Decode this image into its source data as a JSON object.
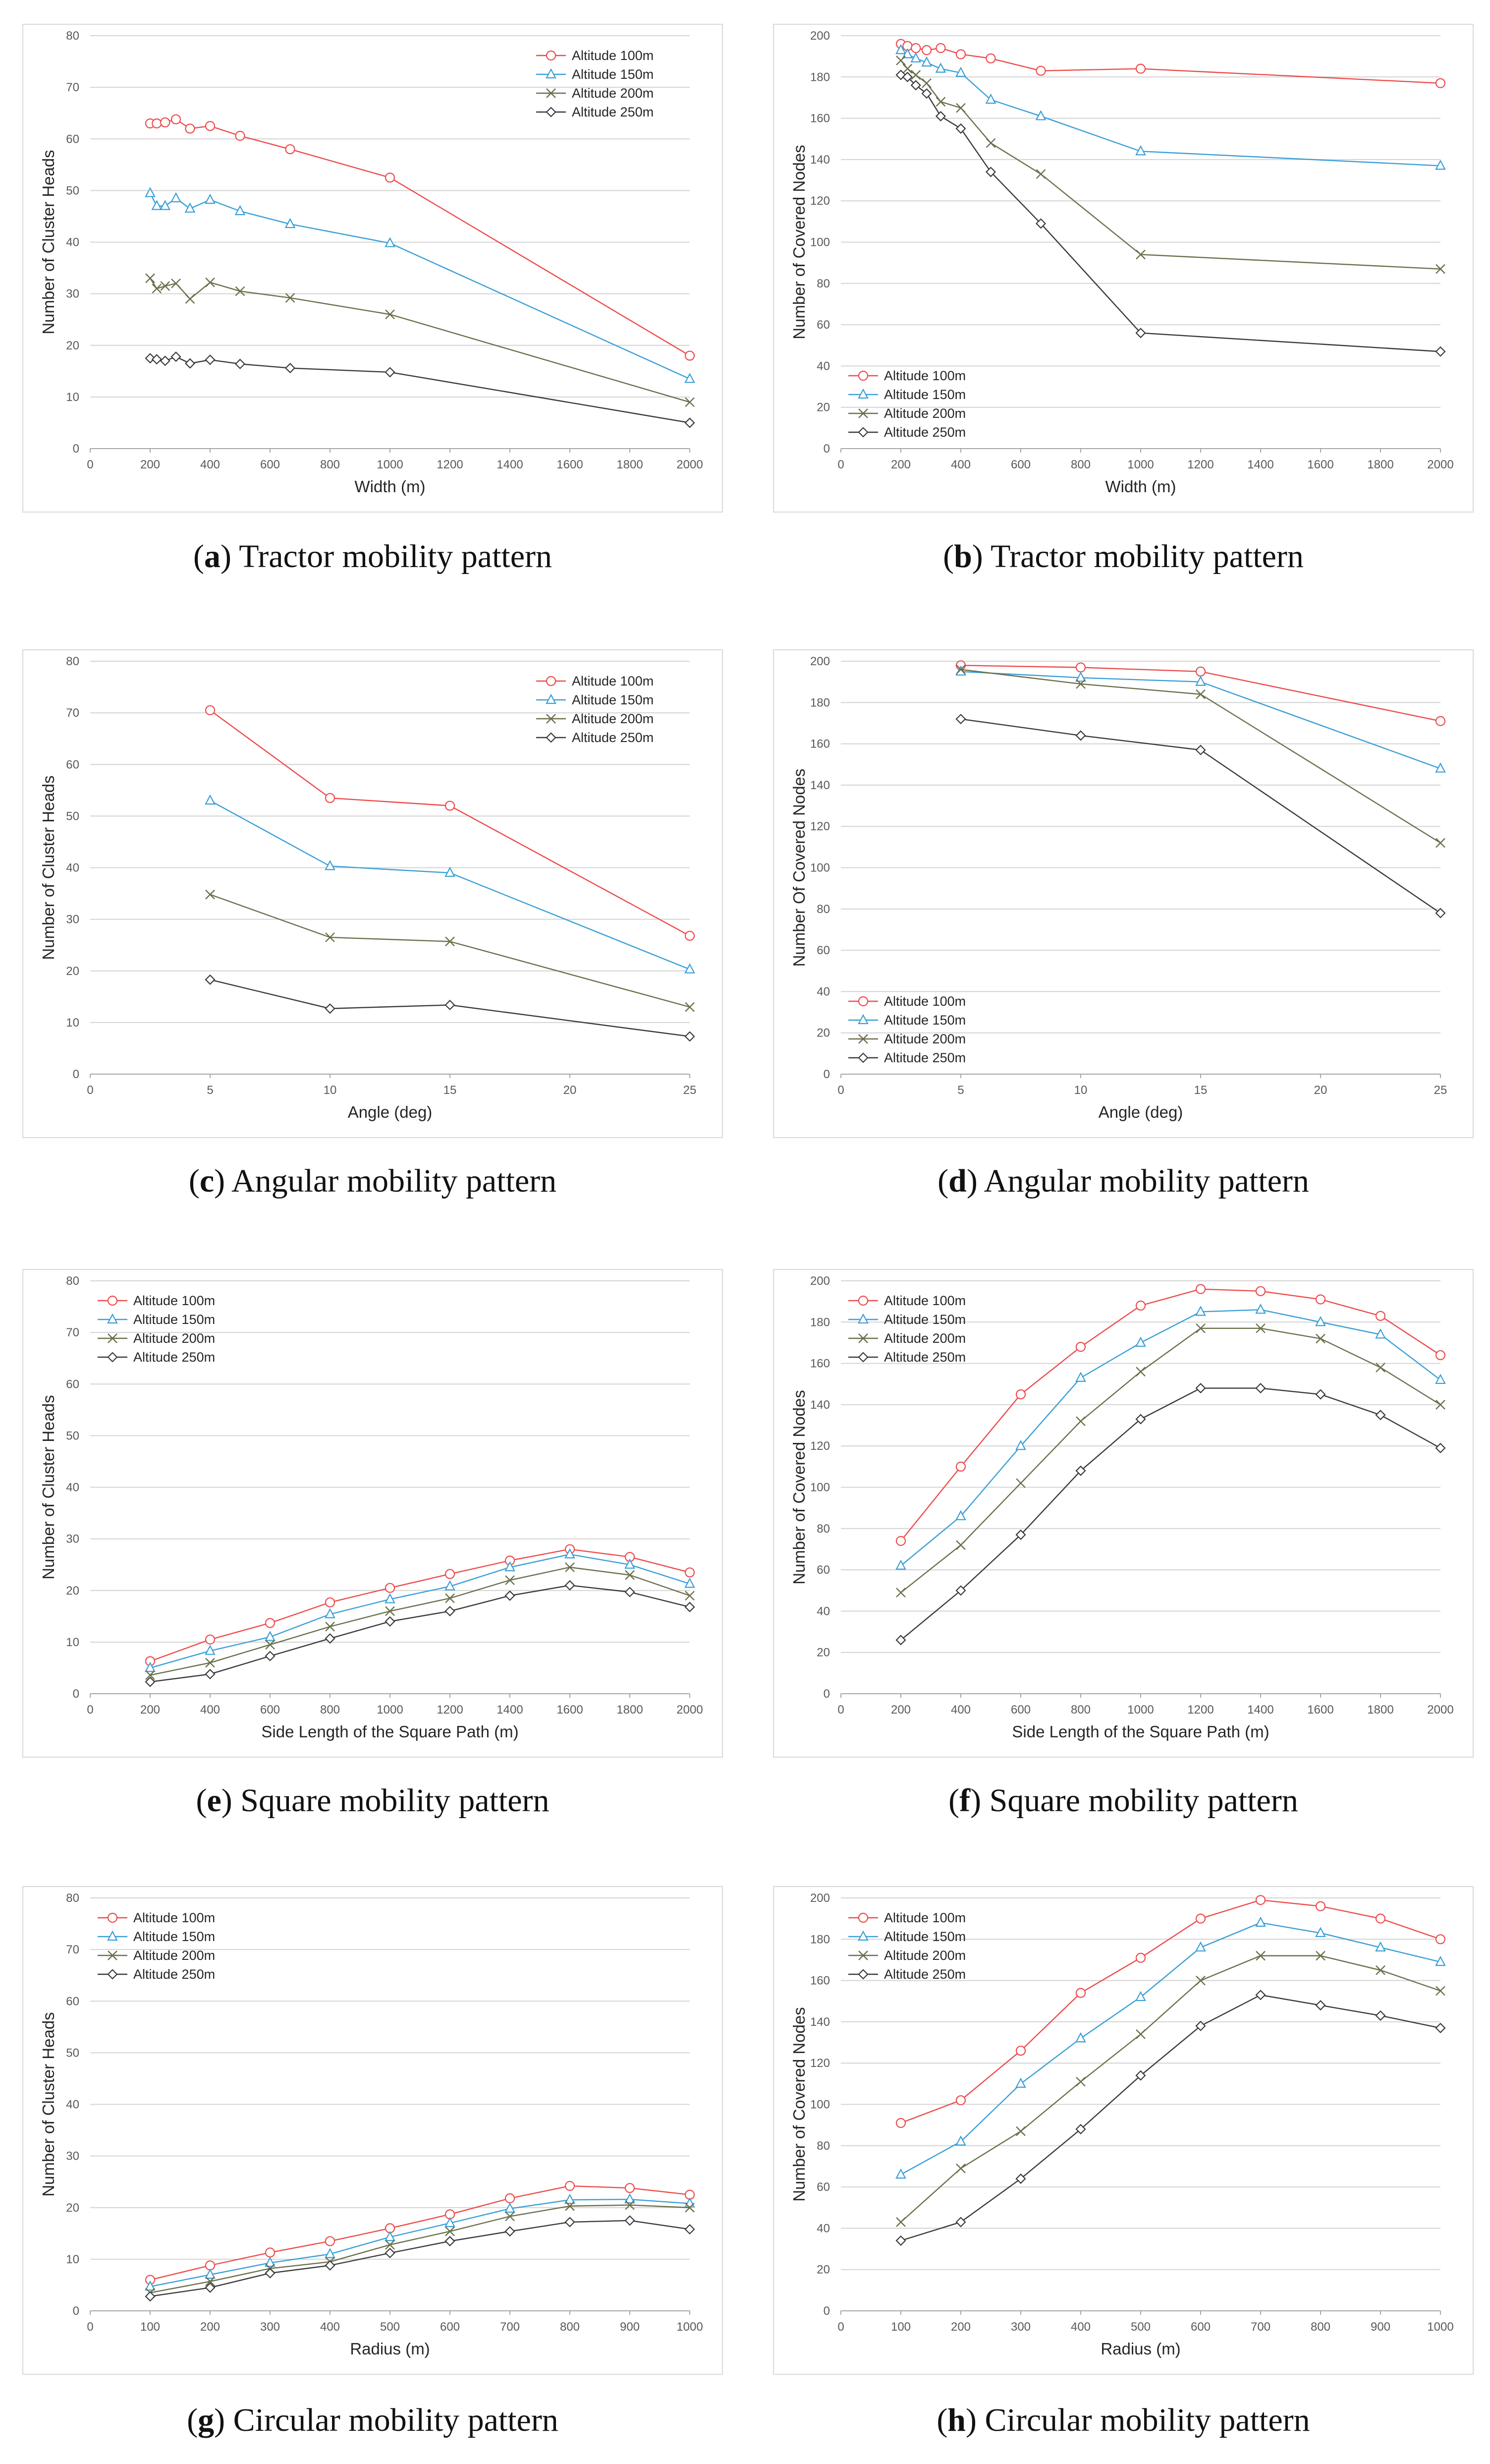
{
  "colors": {
    "s100": "#ee4b4b",
    "s150": "#3a9fd8",
    "s200": "#6b6f4a",
    "s250": "#3a3a3a",
    "grid": "#d4d4d4",
    "axis": "#a6a6a6"
  },
  "chart_data": [
    {
      "id": "a",
      "type": "line",
      "caption_letter": "a",
      "caption_text": " Tractor mobility pattern",
      "xlabel": "Width (m)",
      "ylabel": "Number of Cluster Heads",
      "xlim": [
        0,
        2000
      ],
      "xticks": [
        0,
        200,
        400,
        600,
        800,
        1000,
        1200,
        1400,
        1600,
        1800,
        2000
      ],
      "ylim": [
        0,
        80
      ],
      "yticks": [
        0,
        10,
        20,
        30,
        40,
        50,
        60,
        70,
        80
      ],
      "legend": "top-right",
      "x": [
        200,
        222,
        250,
        286,
        333,
        400,
        500,
        667,
        1000,
        2000
      ],
      "series": [
        {
          "name": "Altitude 100m",
          "marker": "circle",
          "values": [
            63,
            63,
            63.2,
            63.8,
            62,
            62.5,
            60.6,
            58,
            52.5,
            18
          ]
        },
        {
          "name": "Altitude 150m",
          "marker": "triangle",
          "values": [
            49.5,
            47,
            47,
            48.5,
            46.5,
            48.2,
            46,
            43.5,
            39.8,
            13.5
          ]
        },
        {
          "name": "Altitude 200m",
          "marker": "cross",
          "values": [
            33,
            31,
            31.5,
            32,
            29,
            32.2,
            30.5,
            29.2,
            26,
            9
          ]
        },
        {
          "name": "Altitude 250m",
          "marker": "diamond",
          "values": [
            17.5,
            17.3,
            17,
            17.8,
            16.5,
            17.2,
            16.4,
            15.6,
            14.8,
            5
          ]
        }
      ]
    },
    {
      "id": "b",
      "type": "line",
      "caption_letter": "b",
      "caption_text": " Tractor mobility pattern",
      "xlabel": "Width (m)",
      "ylabel": "Number of Covered Nodes",
      "xlim": [
        0,
        2000
      ],
      "xticks": [
        0,
        200,
        400,
        600,
        800,
        1000,
        1200,
        1400,
        1600,
        1800,
        2000
      ],
      "ylim": [
        0,
        200
      ],
      "yticks": [
        0,
        20,
        40,
        60,
        80,
        100,
        120,
        140,
        160,
        180,
        200
      ],
      "legend": "bottom-left",
      "x": [
        200,
        222,
        250,
        286,
        333,
        400,
        500,
        667,
        1000,
        2000
      ],
      "series": [
        {
          "name": "Altitude 100m",
          "marker": "circle",
          "values": [
            196,
            195,
            194,
            193,
            194,
            191,
            189,
            183,
            184,
            177
          ]
        },
        {
          "name": "Altitude 150m",
          "marker": "triangle",
          "values": [
            193,
            191,
            189,
            187,
            184,
            182,
            169,
            161,
            144,
            137
          ]
        },
        {
          "name": "Altitude 200m",
          "marker": "cross",
          "values": [
            188,
            184,
            181,
            177,
            168,
            165,
            148,
            133,
            94,
            87
          ]
        },
        {
          "name": "Altitude 250m",
          "marker": "diamond",
          "values": [
            181,
            180,
            176,
            172,
            161,
            155,
            134,
            109,
            56,
            47
          ]
        }
      ]
    },
    {
      "id": "c",
      "type": "line",
      "caption_letter": "c",
      "caption_text": " Angular mobility pattern",
      "xlabel": "Angle (deg)",
      "ylabel": "Number of Cluster Heads",
      "xlim": [
        0,
        25
      ],
      "xticks": [
        0,
        5,
        10,
        15,
        20,
        25
      ],
      "ylim": [
        0,
        80
      ],
      "yticks": [
        0,
        10,
        20,
        30,
        40,
        50,
        60,
        70,
        80
      ],
      "legend": "top-right",
      "x": [
        5,
        10,
        15,
        25
      ],
      "series": [
        {
          "name": "Altitude 100m",
          "marker": "circle",
          "values": [
            70.5,
            53.5,
            52,
            26.8
          ]
        },
        {
          "name": "Altitude 150m",
          "marker": "triangle",
          "values": [
            53,
            40.3,
            39,
            20.3
          ]
        },
        {
          "name": "Altitude 200m",
          "marker": "cross",
          "values": [
            34.8,
            26.5,
            25.7,
            13
          ]
        },
        {
          "name": "Altitude 250m",
          "marker": "diamond",
          "values": [
            18.3,
            12.7,
            13.4,
            7.3
          ]
        }
      ]
    },
    {
      "id": "d",
      "type": "line",
      "caption_letter": "d",
      "caption_text": " Angular mobility pattern",
      "xlabel": "Angle (deg)",
      "ylabel": "Number Of Covered Nodes",
      "xlim": [
        0,
        25
      ],
      "xticks": [
        0,
        5,
        10,
        15,
        20,
        25
      ],
      "ylim": [
        0,
        200
      ],
      "yticks": [
        0,
        20,
        40,
        60,
        80,
        100,
        120,
        140,
        160,
        180,
        200
      ],
      "legend": "bottom-left",
      "x": [
        5,
        10,
        15,
        25
      ],
      "series": [
        {
          "name": "Altitude 100m",
          "marker": "circle",
          "values": [
            198,
            197,
            195,
            171
          ]
        },
        {
          "name": "Altitude 150m",
          "marker": "triangle",
          "values": [
            195,
            192,
            190,
            148
          ]
        },
        {
          "name": "Altitude 200m",
          "marker": "cross",
          "values": [
            196,
            189,
            184,
            112
          ]
        },
        {
          "name": "Altitude 250m",
          "marker": "diamond",
          "values": [
            172,
            164,
            157,
            78
          ]
        }
      ]
    },
    {
      "id": "e",
      "type": "line",
      "caption_letter": "e",
      "caption_text": " Square mobility pattern",
      "xlabel": "Side Length of the Square Path (m)",
      "ylabel": "Number of Cluster Heads",
      "xlim": [
        0,
        2000
      ],
      "xticks": [
        0,
        200,
        400,
        600,
        800,
        1000,
        1200,
        1400,
        1600,
        1800,
        2000
      ],
      "ylim": [
        0,
        80
      ],
      "yticks": [
        0,
        10,
        20,
        30,
        40,
        50,
        60,
        70,
        80
      ],
      "legend": "top-left",
      "x": [
        200,
        400,
        600,
        800,
        1000,
        1200,
        1400,
        1600,
        1800,
        2000
      ],
      "series": [
        {
          "name": "Altitude 100m",
          "marker": "circle",
          "values": [
            6.3,
            10.5,
            13.7,
            17.7,
            20.5,
            23.2,
            25.8,
            28,
            26.5,
            23.5
          ]
        },
        {
          "name": "Altitude 150m",
          "marker": "triangle",
          "values": [
            5,
            8.3,
            11,
            15.4,
            18.3,
            20.8,
            24.5,
            27,
            25,
            21.3
          ]
        },
        {
          "name": "Altitude 200m",
          "marker": "cross",
          "values": [
            3.6,
            6,
            9.5,
            13,
            16,
            18.5,
            22,
            24.5,
            23,
            19
          ]
        },
        {
          "name": "Altitude 250m",
          "marker": "diamond",
          "values": [
            2.3,
            3.8,
            7.3,
            10.7,
            14,
            16,
            19,
            21,
            19.7,
            16.8
          ]
        }
      ]
    },
    {
      "id": "f",
      "type": "line",
      "caption_letter": "f",
      "caption_text": " Square mobility pattern",
      "xlabel": "Side Length of the Square Path (m)",
      "ylabel": "Number of Covered Nodes",
      "xlim": [
        0,
        2000
      ],
      "xticks": [
        0,
        200,
        400,
        600,
        800,
        1000,
        1200,
        1400,
        1600,
        1800,
        2000
      ],
      "ylim": [
        0,
        200
      ],
      "yticks": [
        0,
        20,
        40,
        60,
        80,
        100,
        120,
        140,
        160,
        180,
        200
      ],
      "legend": "top-left",
      "x": [
        200,
        400,
        600,
        800,
        1000,
        1200,
        1400,
        1600,
        1800,
        2000
      ],
      "series": [
        {
          "name": "Altitude 100m",
          "marker": "circle",
          "values": [
            74,
            110,
            145,
            168,
            188,
            196,
            195,
            191,
            183,
            164
          ]
        },
        {
          "name": "Altitude 150m",
          "marker": "triangle",
          "values": [
            62,
            86,
            120,
            153,
            170,
            185,
            186,
            180,
            174,
            152
          ]
        },
        {
          "name": "Altitude 200m",
          "marker": "cross",
          "values": [
            49,
            72,
            102,
            132,
            156,
            177,
            177,
            172,
            158,
            140
          ]
        },
        {
          "name": "Altitude 250m",
          "marker": "diamond",
          "values": [
            26,
            50,
            77,
            108,
            133,
            148,
            148,
            145,
            135,
            119
          ]
        }
      ]
    },
    {
      "id": "g",
      "type": "line",
      "caption_letter": "g",
      "caption_text": " Circular mobility pattern",
      "xlabel": "Radius (m)",
      "ylabel": "Number of Cluster Heads",
      "xlim": [
        0,
        1000
      ],
      "xticks": [
        0,
        100,
        200,
        300,
        400,
        500,
        600,
        700,
        800,
        900,
        1000
      ],
      "ylim": [
        0,
        80
      ],
      "yticks": [
        0,
        10,
        20,
        30,
        40,
        50,
        60,
        70,
        80
      ],
      "legend": "top-left",
      "x": [
        100,
        200,
        300,
        400,
        500,
        600,
        700,
        800,
        900,
        1000
      ],
      "series": [
        {
          "name": "Altitude 100m",
          "marker": "circle",
          "values": [
            6,
            8.8,
            11.3,
            13.5,
            16,
            18.7,
            21.8,
            24.2,
            23.8,
            22.5
          ]
        },
        {
          "name": "Altitude 150m",
          "marker": "triangle",
          "values": [
            4.7,
            7,
            9.3,
            11,
            14.3,
            17,
            19.8,
            21.5,
            21.6,
            20.8
          ]
        },
        {
          "name": "Altitude 200m",
          "marker": "cross",
          "values": [
            3.5,
            5.7,
            8.2,
            9.5,
            12.8,
            15.4,
            18.3,
            20.3,
            20.5,
            20
          ]
        },
        {
          "name": "Altitude 250m",
          "marker": "diamond",
          "values": [
            2.8,
            4.5,
            7.3,
            8.8,
            11.2,
            13.5,
            15.4,
            17.2,
            17.5,
            15.8
          ]
        }
      ]
    },
    {
      "id": "h",
      "type": "line",
      "caption_letter": "h",
      "caption_text": " Circular mobility pattern",
      "xlabel": "Radius (m)",
      "ylabel": "Number of Covered Nodes",
      "xlim": [
        0,
        1000
      ],
      "xticks": [
        0,
        100,
        200,
        300,
        400,
        500,
        600,
        700,
        800,
        900,
        1000
      ],
      "ylim": [
        0,
        200
      ],
      "yticks": [
        0,
        20,
        40,
        60,
        80,
        100,
        120,
        140,
        160,
        180,
        200
      ],
      "legend": "top-left",
      "x": [
        100,
        200,
        300,
        400,
        500,
        600,
        700,
        800,
        900,
        1000
      ],
      "series": [
        {
          "name": "Altitude 100m",
          "marker": "circle",
          "values": [
            91,
            102,
            126,
            154,
            171,
            190,
            199,
            196,
            190,
            180
          ]
        },
        {
          "name": "Altitude 150m",
          "marker": "triangle",
          "values": [
            66,
            82,
            110,
            132,
            152,
            176,
            188,
            183,
            176,
            169
          ]
        },
        {
          "name": "Altitude 200m",
          "marker": "cross",
          "values": [
            43,
            69,
            87,
            111,
            134,
            160,
            172,
            172,
            165,
            155
          ]
        },
        {
          "name": "Altitude 250m",
          "marker": "diamond",
          "values": [
            34,
            43,
            64,
            88,
            114,
            138,
            153,
            148,
            143,
            137
          ]
        }
      ]
    }
  ]
}
